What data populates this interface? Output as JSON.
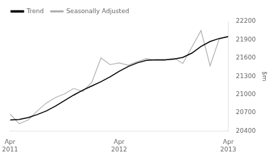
{
  "chart_data": {
    "type": "line",
    "y_label": "$m",
    "x": [
      0,
      1,
      2,
      3,
      4,
      5,
      6,
      7,
      8,
      9,
      10,
      11,
      12,
      13,
      14,
      15,
      16,
      17,
      18,
      19,
      20,
      21,
      22,
      23,
      24
    ],
    "series": [
      {
        "name": "Trend",
        "color": "#000000",
        "values": [
          20580,
          20590,
          20620,
          20670,
          20730,
          20810,
          20900,
          20990,
          21070,
          21140,
          21210,
          21290,
          21380,
          21460,
          21520,
          21560,
          21570,
          21570,
          21580,
          21610,
          21680,
          21790,
          21870,
          21920,
          21950
        ]
      },
      {
        "name": "Seasonally Adjusted",
        "color": "#b0b0b0",
        "values": [
          20680,
          20520,
          20580,
          20730,
          20860,
          20950,
          21010,
          21100,
          21050,
          21200,
          21600,
          21490,
          21520,
          21480,
          21540,
          21590,
          21560,
          21560,
          21600,
          21510,
          21780,
          22050,
          21470,
          21910,
          21960
        ]
      }
    ],
    "xlim": [
      0,
      24
    ],
    "xticks": [
      {
        "value": 0,
        "label": "Apr\n2011"
      },
      {
        "value": 12,
        "label": "Apr\n2012"
      },
      {
        "value": 24,
        "label": "Apr\n2013"
      }
    ],
    "ylim": [
      20400,
      22200
    ],
    "yticks": [
      20400,
      20700,
      21000,
      21300,
      21600,
      21900,
      22200
    ],
    "grid": false,
    "legend": "upper left"
  }
}
